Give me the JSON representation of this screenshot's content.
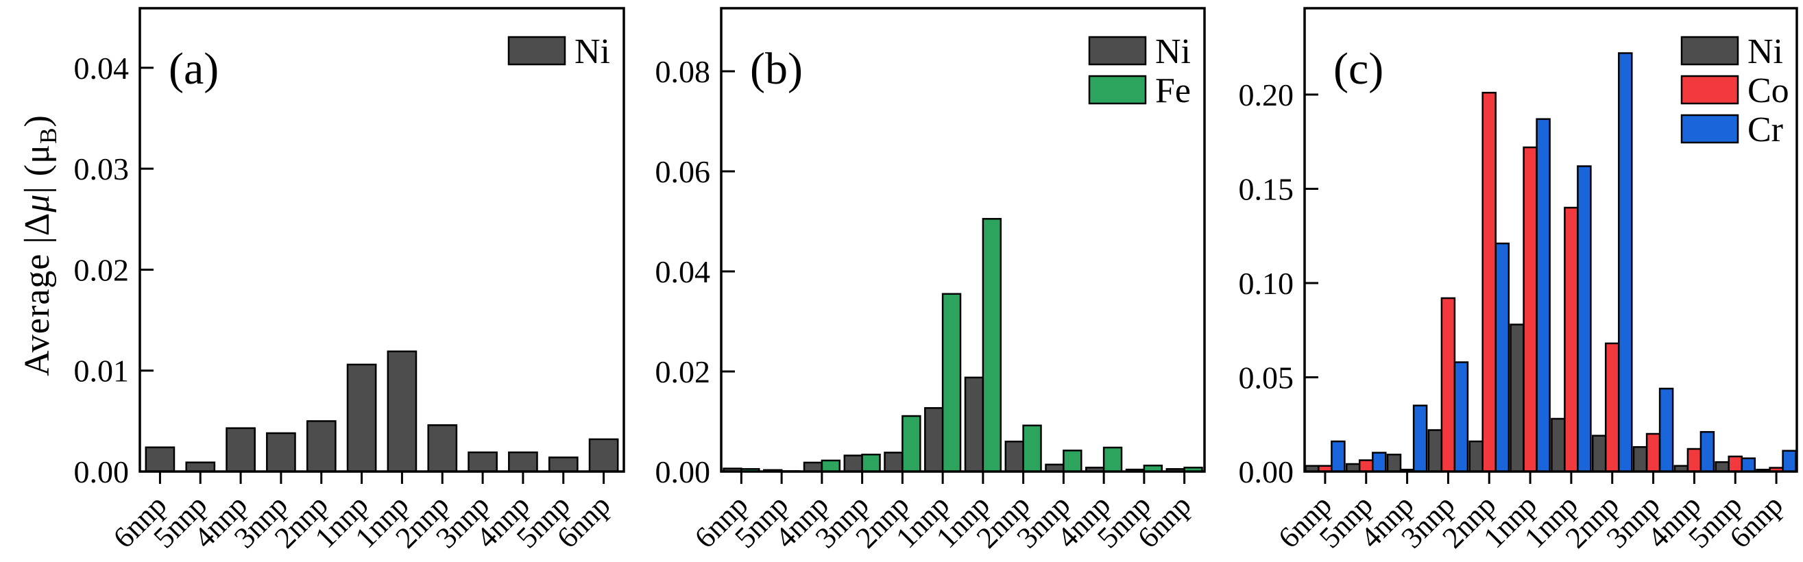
{
  "figure": {
    "ylabel_text": "Average |Δμ| (μB)",
    "ylabel_parts": [
      {
        "text": "Average |",
        "style": "normal"
      },
      {
        "text": "Δ",
        "style": "normal"
      },
      {
        "text": "μ",
        "style": "italic"
      },
      {
        "text": "| (μ",
        "style": "normal"
      },
      {
        "text": "B",
        "style": "sub"
      },
      {
        "text": ")",
        "style": "normal"
      }
    ],
    "background_color": "#ffffff",
    "spine_color": "#000000",
    "bar_edge_color": "#000000"
  },
  "chart_data": [
    {
      "type": "bar",
      "panel_label": "(a)",
      "categories": [
        "6nnp",
        "5nnp",
        "4nnp",
        "3nnp",
        "2nnp",
        "1nnp",
        "1nnp",
        "2nnp",
        "3nnp",
        "4nnp",
        "5nnp",
        "6nnp"
      ],
      "xlabel": "",
      "ylabel": "Average |Δμ| (μB)",
      "ylim": [
        0,
        0.0459
      ],
      "yticks": [
        0.0,
        0.01,
        0.02,
        0.03,
        0.04
      ],
      "ytick_decimals": 2,
      "grid": false,
      "legend_position": "top-right",
      "series": [
        {
          "name": "Ni",
          "color": "#4d4d4d",
          "values": [
            0.0024,
            0.0009,
            0.0043,
            0.0038,
            0.005,
            0.0106,
            0.0119,
            0.0046,
            0.0019,
            0.0019,
            0.0014,
            0.0032
          ]
        }
      ]
    },
    {
      "type": "bar",
      "panel_label": "(b)",
      "categories": [
        "6nnp",
        "5nnp",
        "4nnp",
        "3nnp",
        "2nnp",
        "1nnp",
        "1nnp",
        "2nnp",
        "3nnp",
        "4nnp",
        "5nnp",
        "6nnp"
      ],
      "xlabel": "",
      "ylabel": "Average |Δμ| (μB)",
      "ylim": [
        0,
        0.0926
      ],
      "yticks": [
        0.0,
        0.02,
        0.04,
        0.06,
        0.08
      ],
      "ytick_decimals": 2,
      "grid": false,
      "legend_position": "top-right",
      "series": [
        {
          "name": "Ni",
          "color": "#4d4d4d",
          "values": [
            0.0006,
            0.0003,
            0.0018,
            0.0032,
            0.0038,
            0.0127,
            0.0188,
            0.006,
            0.0014,
            0.0008,
            0.0004,
            0.0005
          ]
        },
        {
          "name": "Fe",
          "color": "#2da45e",
          "values": [
            0.0005,
            0.0001,
            0.0022,
            0.0034,
            0.0111,
            0.0355,
            0.0505,
            0.0092,
            0.0042,
            0.0048,
            0.0012,
            0.0008
          ]
        }
      ]
    },
    {
      "type": "bar",
      "panel_label": "(c)",
      "categories": [
        "6nnp",
        "5nnp",
        "4nnp",
        "3nnp",
        "2nnp",
        "1nnp",
        "1nnp",
        "2nnp",
        "3nnp",
        "4nnp",
        "5nnp",
        "6nnp"
      ],
      "xlabel": "",
      "ylabel": "Average |Δμ| (μB)",
      "ylim": [
        0,
        0.2458
      ],
      "yticks": [
        0.0,
        0.05,
        0.1,
        0.15,
        0.2
      ],
      "ytick_decimals": 2,
      "grid": false,
      "legend_position": "top-right",
      "series": [
        {
          "name": "Ni",
          "color": "#4d4d4d",
          "values": [
            0.003,
            0.004,
            0.009,
            0.022,
            0.016,
            0.078,
            0.028,
            0.019,
            0.013,
            0.003,
            0.005,
            0.001
          ]
        },
        {
          "name": "Co",
          "color": "#f23a3e",
          "values": [
            0.003,
            0.006,
            0.001,
            0.092,
            0.201,
            0.172,
            0.14,
            0.068,
            0.02,
            0.012,
            0.008,
            0.002
          ]
        },
        {
          "name": "Cr",
          "color": "#1a65da",
          "values": [
            0.016,
            0.01,
            0.035,
            0.058,
            0.121,
            0.187,
            0.162,
            0.222,
            0.044,
            0.021,
            0.007,
            0.011
          ]
        }
      ]
    }
  ]
}
